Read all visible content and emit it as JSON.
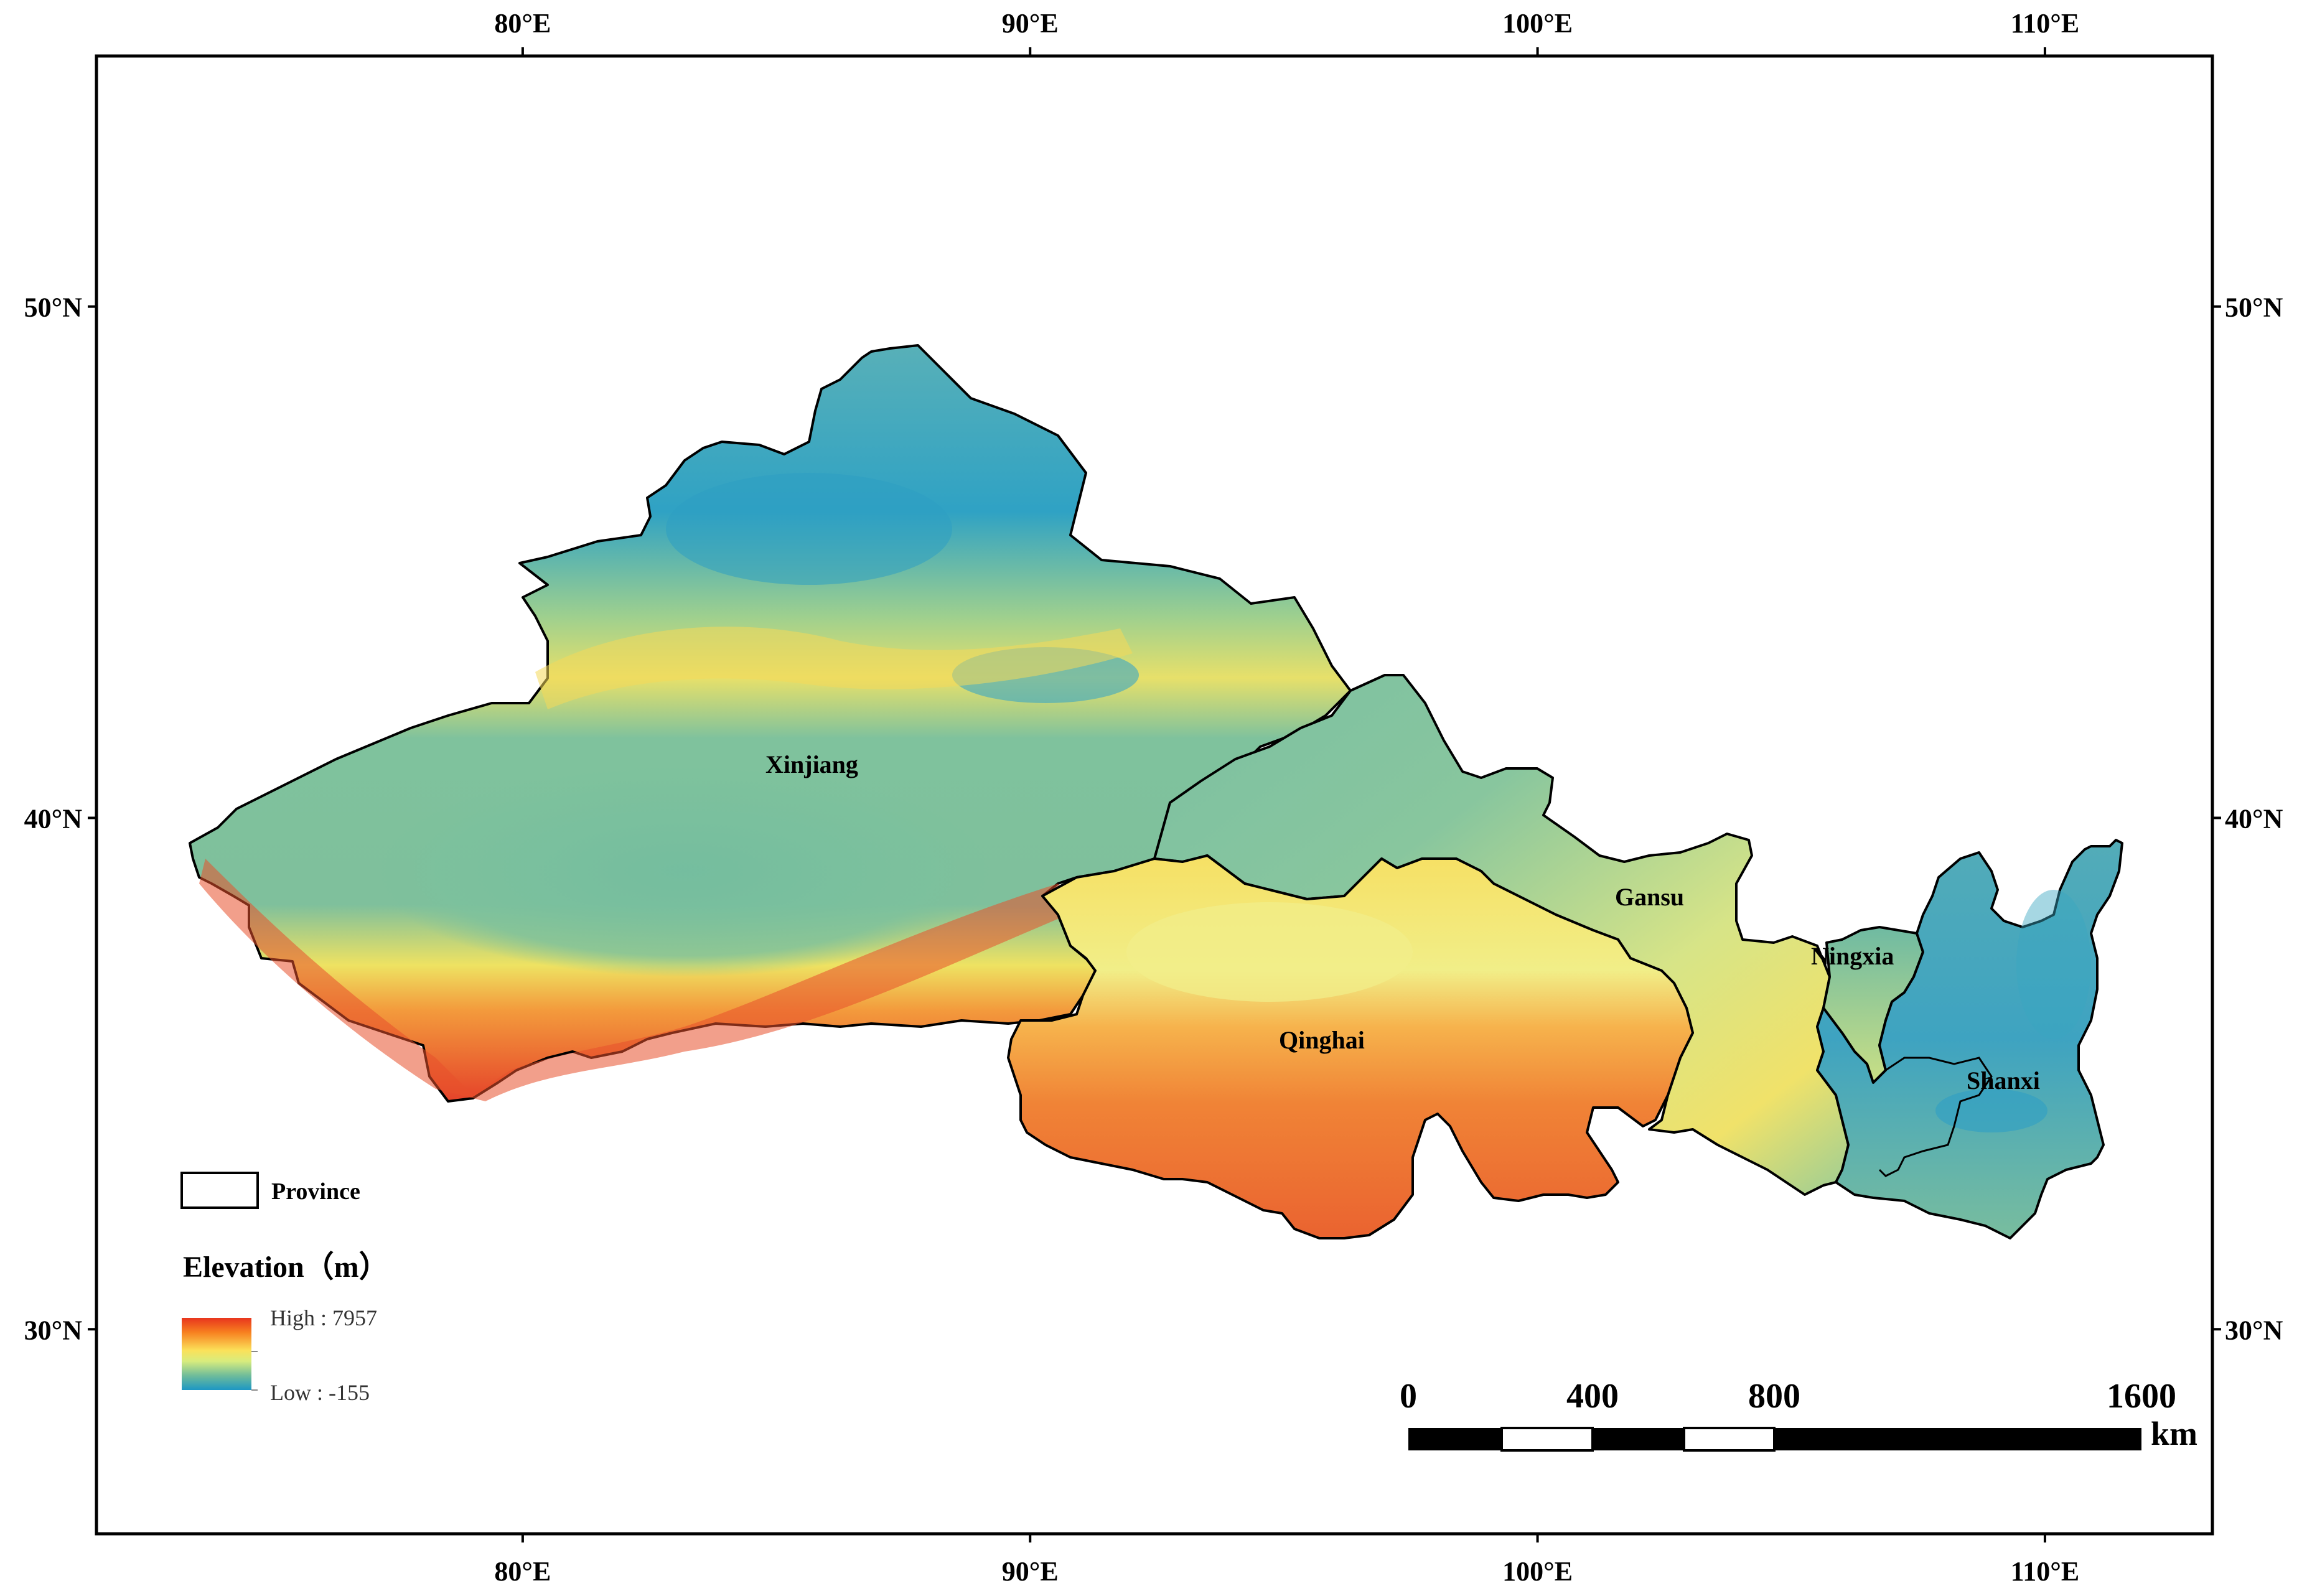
{
  "frame": {
    "lon_min": 71.6,
    "lon_max": 113.3,
    "lat_min": 26.0,
    "lat_max": 54.9
  },
  "graticule": {
    "lon_labels": [
      {
        "value": 80,
        "label": "80°E"
      },
      {
        "value": 90,
        "label": "90°E"
      },
      {
        "value": 100,
        "label": "100°E"
      },
      {
        "value": 110,
        "label": "110°E"
      }
    ],
    "lat_labels": [
      {
        "value": 50,
        "label": "50°N"
      },
      {
        "value": 40,
        "label": "40°N"
      },
      {
        "value": 30,
        "label": "30°N"
      }
    ]
  },
  "provinces": [
    {
      "name": "Xinjiang",
      "label": "Xinjiang"
    },
    {
      "name": "Gansu",
      "label": "Gansu"
    },
    {
      "name": "Qinghai",
      "label": "Qinghai"
    },
    {
      "name": "Ningxia",
      "label": "Ningxia"
    },
    {
      "name": "Shanxi",
      "label": "Shanxi"
    }
  ],
  "legend": {
    "province_label": "Province",
    "elevation_title": "Elevation（m）",
    "high_label": "High : 7957",
    "low_label": "Low : -155",
    "ramp_colors": [
      "#e8351e",
      "#f7801f",
      "#fbe15a",
      "#d8ec7d",
      "#6fbc9a",
      "#1c97c4"
    ]
  },
  "scale_bar": {
    "ticks": [
      "0",
      "400",
      "800",
      "1600"
    ],
    "unit": "km"
  },
  "colors": {
    "frame": "#000000",
    "boundary": "#000000",
    "lowland_blue": "#3aa7c2",
    "basin_teal": "#7cc1a1",
    "upland_yellow": "#f2e770",
    "plateau_orange": "#f08a3a",
    "peak_red": "#e2472a"
  }
}
